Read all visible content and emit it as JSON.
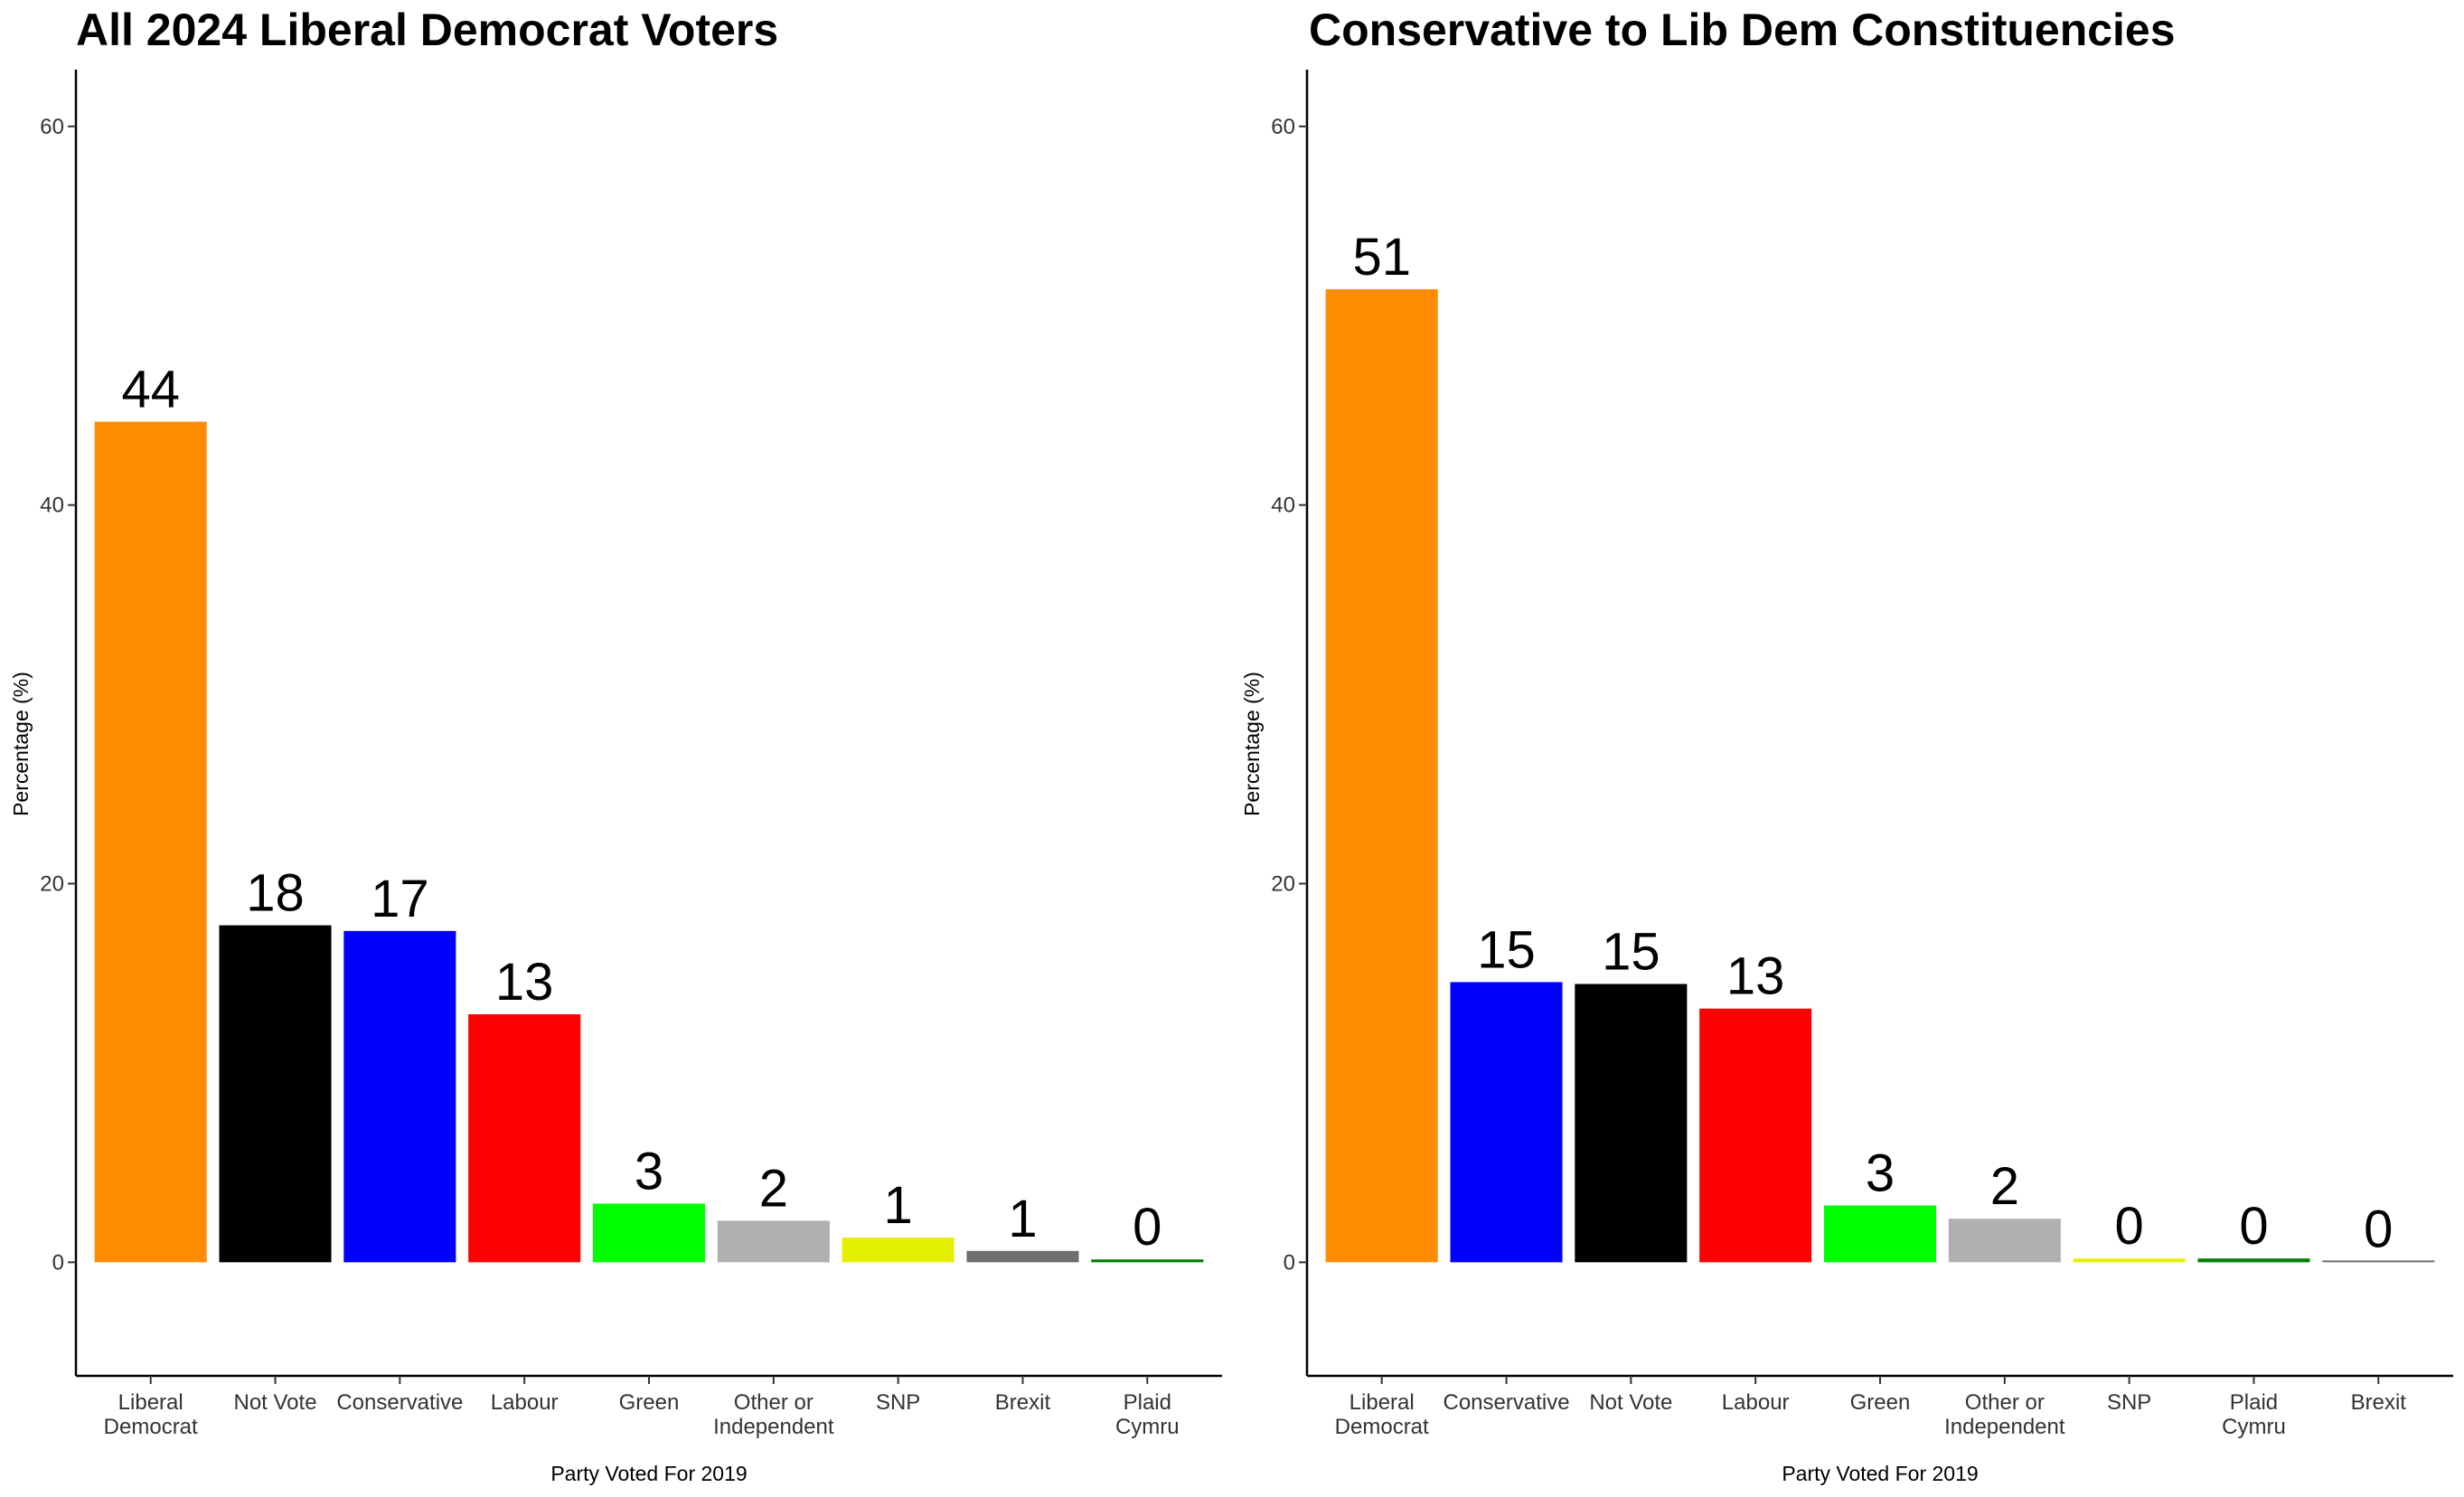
{
  "chart_data": [
    {
      "type": "bar",
      "title": "All 2024 Liberal Democrat Voters",
      "xlabel": "Party Voted For 2019",
      "ylabel": "Percentage (%)",
      "ylim": [
        -6,
        63
      ],
      "yticks": [
        0,
        20,
        40,
        60
      ],
      "grid": false,
      "legend": "none",
      "categories": [
        [
          "Liberal",
          "Democrat"
        ],
        [
          "Not Vote"
        ],
        [
          "Conservative"
        ],
        [
          "Labour"
        ],
        [
          "Green"
        ],
        [
          "Other or",
          "Independent"
        ],
        [
          "SNP"
        ],
        [
          "Brexit"
        ],
        [
          "Plaid",
          "Cymru"
        ]
      ],
      "values": [
        44.4,
        17.8,
        17.5,
        13.1,
        3.1,
        2.2,
        1.3,
        0.6,
        0.15
      ],
      "labels": [
        "44",
        "18",
        "17",
        "13",
        "3",
        "2",
        "1",
        "1",
        "0"
      ],
      "colors": [
        "#FF8C00",
        "#000000",
        "#0000FF",
        "#FF0000",
        "#00FF00",
        "#B0B0B0",
        "#E5F000",
        "#6E6E6E",
        "#008000"
      ]
    },
    {
      "type": "bar",
      "title": "Conservative to Lib Dem Constituencies",
      "xlabel": "Party Voted For 2019",
      "ylabel": "Percentage (%)",
      "ylim": [
        -6,
        63
      ],
      "yticks": [
        0,
        20,
        40,
        60
      ],
      "grid": false,
      "legend": "none",
      "categories": [
        [
          "Liberal",
          "Democrat"
        ],
        [
          "Conservative"
        ],
        [
          "Not Vote"
        ],
        [
          "Labour"
        ],
        [
          "Green"
        ],
        [
          "Other or",
          "Independent"
        ],
        [
          "SNP"
        ],
        [
          "Plaid",
          "Cymru"
        ],
        [
          "Brexit"
        ]
      ],
      "values": [
        51.4,
        14.8,
        14.7,
        13.4,
        3.0,
        2.3,
        0.2,
        0.2,
        0.05
      ],
      "labels": [
        "51",
        "15",
        "15",
        "13",
        "3",
        "2",
        "0",
        "0",
        "0"
      ],
      "colors": [
        "#FF8C00",
        "#0000FF",
        "#000000",
        "#FF0000",
        "#00FF00",
        "#B0B0B0",
        "#E5F000",
        "#008000",
        "#6E6E6E"
      ]
    }
  ]
}
